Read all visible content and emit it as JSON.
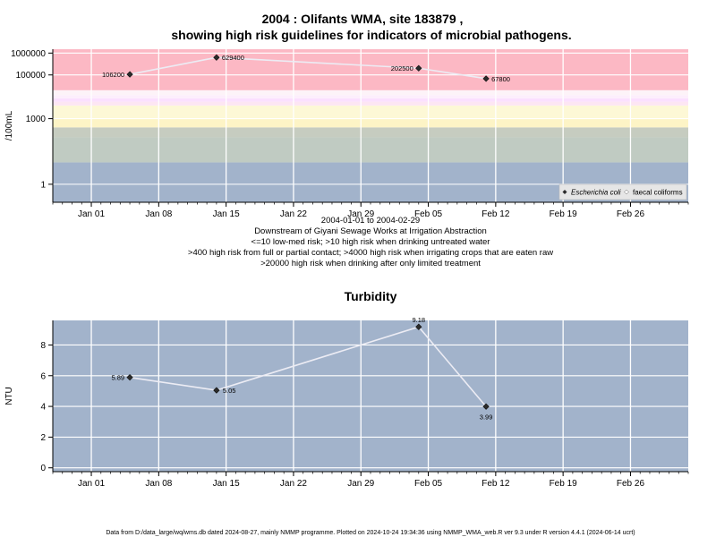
{
  "title_line1": "2004 : Olifants WMA, site 183879 ,",
  "title_line2": "showing high risk guidelines for indicators of microbial pathogens.",
  "chart_data": [
    {
      "type": "scatter",
      "y_scale": "log",
      "ylabel": "/100mL",
      "xlim": [
        "2003-12-28",
        "2004-03-03"
      ],
      "ylim": [
        0.15,
        1500000
      ],
      "x_ticks": [
        "Jan 01",
        "Jan 08",
        "Jan 15",
        "Jan 22",
        "Jan 29",
        "Feb 05",
        "Feb 12",
        "Feb 19",
        "Feb 26"
      ],
      "x_tick_dates": [
        "2004-01-01",
        "2004-01-08",
        "2004-01-15",
        "2004-01-22",
        "2004-01-29",
        "2004-02-05",
        "2004-02-12",
        "2004-02-19",
        "2004-02-26"
      ],
      "y_ticks": [
        1,
        1000,
        100000,
        1000000
      ],
      "y_tick_labels": [
        "1",
        "1000",
        "100000",
        "1000000"
      ],
      "bands": [
        {
          "from": 0.15,
          "to": 10,
          "color": "#a2b3cb"
        },
        {
          "from": 10,
          "to": 140,
          "color": "#c0cbc2"
        },
        {
          "from": 140,
          "to": 400,
          "color": "#c6ccc0"
        },
        {
          "from": 400,
          "to": 1000,
          "color": "#fdf4c6"
        },
        {
          "from": 1000,
          "to": 4000,
          "color": "#fdf8d6"
        },
        {
          "from": 4000,
          "to": 6000,
          "color": "#fde6f3"
        },
        {
          "from": 6000,
          "to": 8500,
          "color": "#fbe0ff"
        },
        {
          "from": 8500,
          "to": 12000,
          "color": "#fdeefc"
        },
        {
          "from": 12000,
          "to": 20000,
          "color": "#fdf3f8"
        },
        {
          "from": 20000,
          "to": 1500000,
          "color": "#fcb8c4"
        }
      ],
      "series": [
        {
          "name": "Escherichia coli",
          "x": [
            "2004-01-05",
            "2004-01-14",
            "2004-02-04",
            "2004-02-11"
          ],
          "y": [
            106200,
            629400,
            202500,
            67800
          ],
          "labels": [
            "106200",
            "629400",
            "202500",
            "67800"
          ]
        }
      ],
      "legend": {
        "position": "bottom-right",
        "entries": [
          "Escherichia coli",
          "faecal coliforms"
        ]
      },
      "grid": true,
      "xlabel_lines": [
        "2004-01-01 to 2004-02-29",
        "Downstream of Giyani Sewage Works at Irrigation Abstraction",
        "<=10 low-med risk; >10 high risk when drinking untreated water",
        ">400 high risk from full or partial contact; >4000 high risk when irrigating crops that are eaten raw",
        ">20000 high risk when drinking after only limited treatment"
      ]
    },
    {
      "type": "line",
      "title": "Turbidity",
      "ylabel": "NTU",
      "xlim": [
        "2003-12-28",
        "2004-03-03"
      ],
      "ylim": [
        -0.25,
        9.6
      ],
      "x_ticks": [
        "Jan 01",
        "Jan 08",
        "Jan 15",
        "Jan 22",
        "Jan 29",
        "Feb 05",
        "Feb 12",
        "Feb 19",
        "Feb 26"
      ],
      "x_tick_dates": [
        "2004-01-01",
        "2004-01-08",
        "2004-01-15",
        "2004-01-22",
        "2004-01-29",
        "2004-02-05",
        "2004-02-12",
        "2004-02-19",
        "2004-02-26"
      ],
      "y_ticks": [
        0,
        2,
        4,
        6,
        8
      ],
      "background": "#a2b3cb",
      "grid": true,
      "series": [
        {
          "x": [
            "2004-01-05",
            "2004-01-14",
            "2004-02-04",
            "2004-02-11"
          ],
          "y": [
            5.89,
            5.05,
            9.18,
            3.99
          ],
          "labels": [
            "5.89",
            "5.05",
            "9.18",
            "3.99"
          ]
        }
      ]
    }
  ],
  "footer": "Data from D:/data_large/wq/wms.db dated 2024-08-27, mainly NMMP programme. Plotted on 2024-10-24 19:34:36 using NMMP_WMA_web.R ver 9.3 under R version 4.4.1 (2024-06-14 ucrt)"
}
